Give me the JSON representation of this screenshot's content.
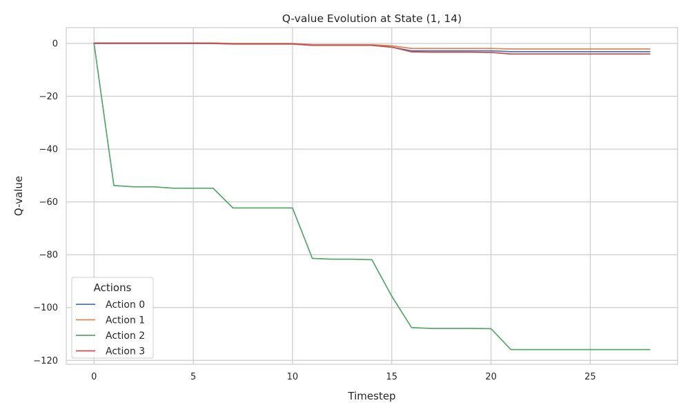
{
  "chart_data": {
    "type": "line",
    "title": "Q-value Evolution at State (1, 14)",
    "xlabel": "Timestep",
    "ylabel": "Q-value",
    "xlim": [
      -1.4,
      29.4
    ],
    "ylim": [
      -121.5,
      6
    ],
    "xticks": [
      0,
      5,
      10,
      15,
      20,
      25
    ],
    "yticks": [
      0,
      -20,
      -40,
      -60,
      -80,
      -100,
      -120
    ],
    "xtick_labels": [
      "0",
      "5",
      "10",
      "15",
      "20",
      "25"
    ],
    "ytick_labels": [
      "0",
      "−20",
      "−40",
      "−60",
      "−80",
      "−100",
      "−120"
    ],
    "grid": true,
    "legend": {
      "title": "Actions",
      "position": "lower-left"
    },
    "x": [
      0,
      1,
      2,
      3,
      4,
      5,
      6,
      7,
      8,
      9,
      10,
      11,
      12,
      13,
      14,
      15,
      16,
      17,
      18,
      19,
      20,
      21,
      22,
      23,
      24,
      25,
      26,
      27,
      28
    ],
    "series": [
      {
        "name": "Action 0",
        "color": "#4c72b0",
        "values": [
          0,
          0,
          0,
          0,
          0,
          0,
          0,
          -0.2,
          -0.2,
          -0.2,
          -0.2,
          -0.7,
          -0.7,
          -0.7,
          -0.7,
          -1.4,
          -2.8,
          -2.8,
          -2.8,
          -2.8,
          -2.8,
          -3.1,
          -3.1,
          -3.1,
          -3.1,
          -3.1,
          -3.1,
          -3.1,
          -3.1
        ]
      },
      {
        "name": "Action 1",
        "color": "#dd8452",
        "values": [
          0.2,
          0.2,
          0.2,
          0.2,
          0.2,
          0.2,
          0.2,
          0,
          0,
          0,
          0,
          -0.5,
          -0.5,
          -0.5,
          -0.5,
          -0.9,
          -1.9,
          -1.9,
          -1.9,
          -1.9,
          -1.9,
          -2.1,
          -2.1,
          -2.1,
          -2.1,
          -2.1,
          -2.1,
          -2.1,
          -2.1
        ]
      },
      {
        "name": "Action 2",
        "color": "#55a868",
        "values": [
          0,
          -53.8,
          -54.3,
          -54.3,
          -54.8,
          -54.8,
          -54.8,
          -62.3,
          -62.3,
          -62.3,
          -62.3,
          -81.4,
          -81.7,
          -81.7,
          -81.9,
          -95.7,
          -107.6,
          -107.9,
          -107.9,
          -107.9,
          -108,
          -115.9,
          -115.9,
          -115.9,
          -115.9,
          -115.9,
          -115.9,
          -115.9,
          -115.9
        ]
      },
      {
        "name": "Action 3",
        "color": "#c44e52",
        "values": [
          0.1,
          0.1,
          0.1,
          0.1,
          0.1,
          0.1,
          0,
          -0.2,
          -0.2,
          -0.2,
          -0.2,
          -0.7,
          -0.7,
          -0.7,
          -0.7,
          -1.4,
          -3.2,
          -3.3,
          -3.3,
          -3.3,
          -3.4,
          -4,
          -4,
          -4,
          -4,
          -4,
          -4,
          -4,
          -4
        ]
      }
    ]
  }
}
